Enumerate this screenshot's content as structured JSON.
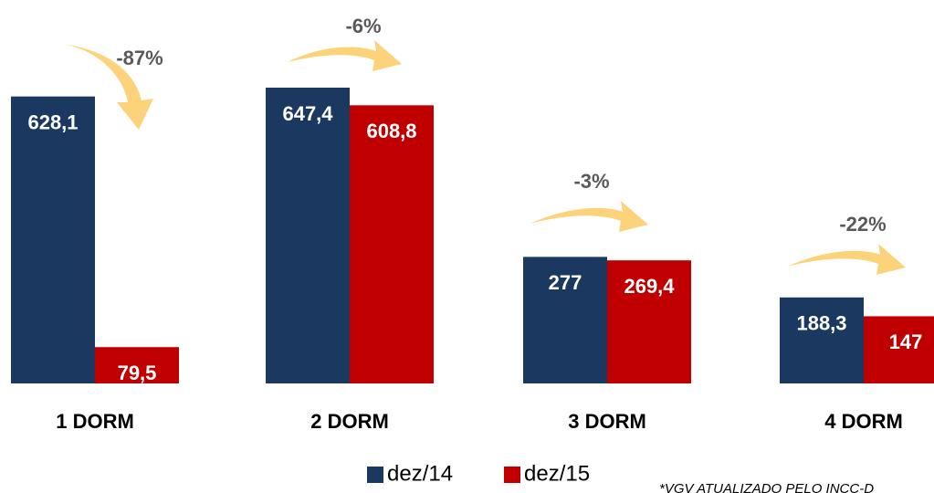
{
  "chart_data": {
    "type": "bar",
    "categories": [
      "1 DORM",
      "2 DORM",
      "3 DORM",
      "4 DORM"
    ],
    "series": [
      {
        "name": "dez/14",
        "color": "#1b3861",
        "values": [
          628.1,
          647.4,
          277,
          188.3
        ],
        "value_labels": [
          "628,1",
          "647,4",
          "277",
          "188,3"
        ]
      },
      {
        "name": "dez/15",
        "color": "#c00000",
        "values": [
          79.5,
          608.8,
          269.4,
          147
        ],
        "value_labels": [
          "79,5",
          "608,8",
          "269,4",
          "147"
        ]
      }
    ],
    "annotations": [
      "-87%",
      "-6%",
      "-3%",
      "-22%"
    ],
    "footnote": "*VGV ATUALIZADO PELO INCC-D"
  }
}
